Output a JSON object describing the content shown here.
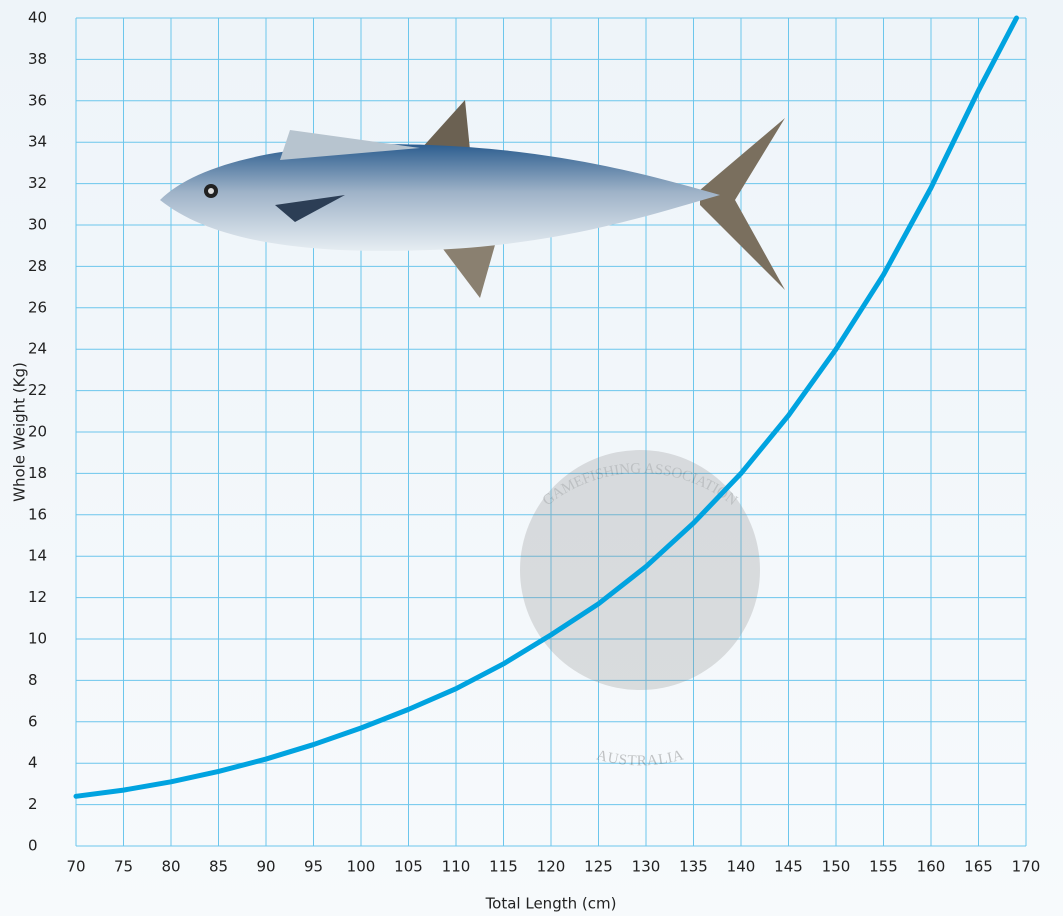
{
  "chart_data": {
    "type": "line",
    "x_label": "Total Length (cm)",
    "y_label": "Whole Weight (Kg)",
    "x": [
      70,
      75,
      80,
      85,
      90,
      95,
      100,
      105,
      110,
      115,
      120,
      125,
      130,
      135,
      140,
      145,
      150,
      155,
      160,
      165,
      169
    ],
    "series": [
      {
        "color": "#00a3e0",
        "values": [
          2.4,
          2.7,
          3.1,
          3.6,
          4.2,
          4.9,
          5.7,
          6.6,
          7.6,
          8.8,
          10.2,
          11.7,
          13.5,
          15.6,
          18.0,
          20.8,
          24.0,
          27.6,
          31.8,
          36.5,
          40
        ]
      }
    ],
    "xlim": [
      70,
      170
    ],
    "xticks": [
      70,
      75,
      80,
      85,
      90,
      95,
      100,
      105,
      110,
      115,
      120,
      125,
      130,
      135,
      140,
      145,
      150,
      155,
      160,
      165,
      170
    ],
    "ylim": [
      0,
      40
    ],
    "yticks": [
      0,
      2,
      4,
      6,
      8,
      10,
      12,
      14,
      16,
      18,
      20,
      22,
      24,
      26,
      28,
      30,
      32,
      34,
      36,
      38,
      40
    ],
    "grid": true,
    "grid_color": "#6cc6ec",
    "watermark_top": "GAMEFISHING ASSOCIATION",
    "watermark_bottom": "AUSTRALIA"
  }
}
